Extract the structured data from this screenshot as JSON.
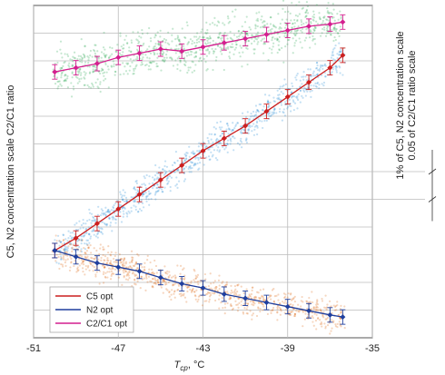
{
  "chart_data": {
    "type": "scatter",
    "xlabel": "T",
    "xlabel_sub": "cp",
    "xlabel_unit": ", °C",
    "ylabel": "C5, N2 concentration scale C2/C1 ratio",
    "xlim": [
      -51,
      -35
    ],
    "x_ticks": [
      "-51",
      "-47",
      "-43",
      "-39",
      "-35"
    ],
    "grid": true,
    "legend_position": "bottom-left",
    "right_scale": {
      "line1": "1% of C5, N2 concentration scale",
      "line2": "0.05 of C2/C1 ratio scale"
    },
    "series": [
      {
        "name": "C5 opt",
        "color": "#cc1f1f",
        "scatter_color": "#2a8fd9",
        "x": [
          -50.0,
          -49.0,
          -48.0,
          -47.0,
          -46.0,
          -45.0,
          -44.0,
          -43.0,
          -42.0,
          -41.0,
          -40.0,
          -39.0,
          -38.0,
          -37.0,
          -36.4
        ],
        "y": [
          4.2,
          4.8,
          5.5,
          6.2,
          6.9,
          7.6,
          8.3,
          9.0,
          9.6,
          10.2,
          10.9,
          11.6,
          12.3,
          13.0,
          13.6
        ]
      },
      {
        "name": "N2 opt",
        "color": "#1f3f9e",
        "scatter_color": "#e06a1a",
        "x": [
          -50.0,
          -49.0,
          -48.0,
          -47.0,
          -46.0,
          -45.0,
          -44.0,
          -43.0,
          -42.0,
          -41.0,
          -40.0,
          -39.0,
          -38.0,
          -37.0,
          -36.4
        ],
        "y": [
          4.2,
          3.9,
          3.6,
          3.4,
          3.2,
          2.9,
          2.6,
          2.4,
          2.1,
          1.9,
          1.7,
          1.5,
          1.3,
          1.1,
          1.0
        ]
      },
      {
        "name": "C2/C1 opt",
        "color": "#d41f8f",
        "scatter_color": "#2eaa55",
        "x": [
          -50.0,
          -49.0,
          -48.0,
          -47.0,
          -46.0,
          -45.0,
          -44.0,
          -43.0,
          -42.0,
          -41.0,
          -40.0,
          -39.0,
          -38.0,
          -37.0,
          -36.4
        ],
        "y": [
          12.8,
          13.0,
          13.2,
          13.5,
          13.7,
          13.9,
          13.8,
          14.0,
          14.2,
          14.4,
          14.6,
          14.8,
          15.0,
          15.1,
          15.2
        ]
      }
    ]
  }
}
